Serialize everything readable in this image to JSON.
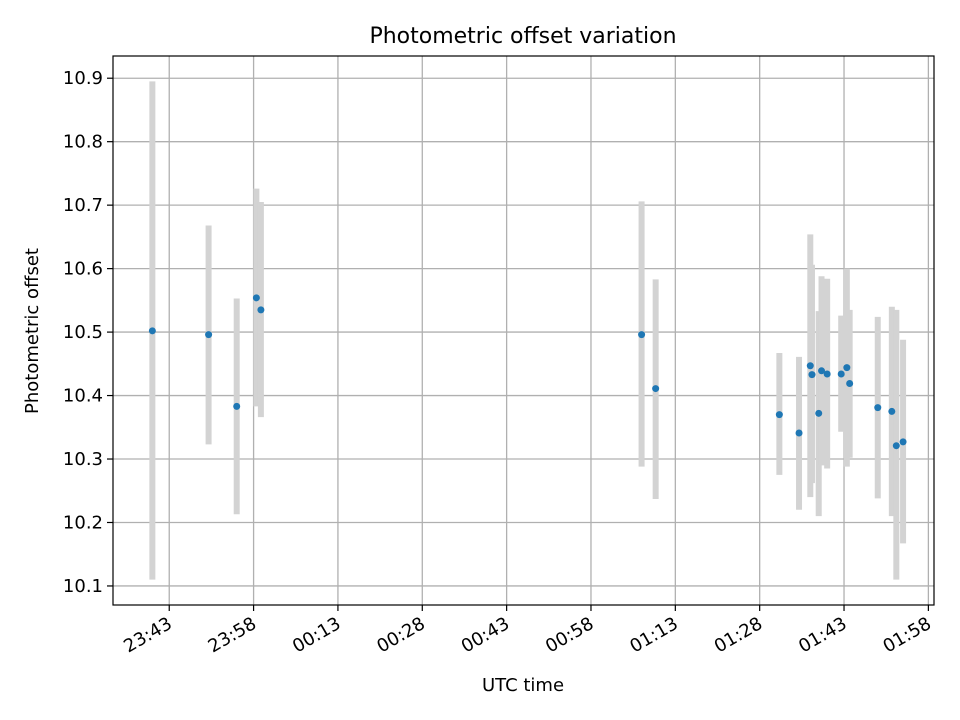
{
  "chart_data": {
    "type": "scatter",
    "title": "Photometric offset variation",
    "xlabel": "UTC time",
    "ylabel": "Photometric offset",
    "grid": true,
    "x_unit": "UTC clock time (HH:MM)",
    "xlim": [
      "23:33",
      "01:59"
    ],
    "ylim": [
      10.07,
      10.935
    ],
    "x_ticks": [
      "23:43",
      "23:58",
      "00:13",
      "00:28",
      "00:43",
      "00:58",
      "01:13",
      "01:28",
      "01:43",
      "01:58"
    ],
    "y_ticks": [
      10.1,
      10.2,
      10.3,
      10.4,
      10.5,
      10.6,
      10.7,
      10.8,
      10.9
    ],
    "y_tick_labels": [
      "10.1",
      "10.2",
      "10.3",
      "10.4",
      "10.5",
      "10.6",
      "10.7",
      "10.8",
      "10.9"
    ],
    "colors": {
      "marker": "#1f77b4",
      "errorbar": "#d3d3d3",
      "grid": "#b0b0b0"
    },
    "points": [
      {
        "x": "23:40",
        "y": 10.502,
        "ylow": 10.11,
        "yhigh": 10.895
      },
      {
        "x": "23:50",
        "y": 10.496,
        "ylow": 10.323,
        "yhigh": 10.668
      },
      {
        "x": "23:55",
        "y": 10.383,
        "ylow": 10.213,
        "yhigh": 10.553
      },
      {
        "x": "23:58.5",
        "y": 10.554,
        "ylow": 10.383,
        "yhigh": 10.726
      },
      {
        "x": "23:59.3",
        "y": 10.535,
        "ylow": 10.366,
        "yhigh": 10.705
      },
      {
        "x": "01:07",
        "y": 10.496,
        "ylow": 10.288,
        "yhigh": 10.706
      },
      {
        "x": "01:09.5",
        "y": 10.411,
        "ylow": 10.237,
        "yhigh": 10.583
      },
      {
        "x": "01:31.5",
        "y": 10.37,
        "ylow": 10.275,
        "yhigh": 10.467
      },
      {
        "x": "01:35",
        "y": 10.341,
        "ylow": 10.22,
        "yhigh": 10.461
      },
      {
        "x": "01:37",
        "y": 10.447,
        "ylow": 10.24,
        "yhigh": 10.654
      },
      {
        "x": "01:37.3",
        "y": 10.433,
        "ylow": 10.262,
        "yhigh": 10.606
      },
      {
        "x": "01:38.5",
        "y": 10.372,
        "ylow": 10.21,
        "yhigh": 10.533
      },
      {
        "x": "01:39",
        "y": 10.439,
        "ylow": 10.29,
        "yhigh": 10.588
      },
      {
        "x": "01:40",
        "y": 10.434,
        "ylow": 10.285,
        "yhigh": 10.584
      },
      {
        "x": "01:42.5",
        "y": 10.434,
        "ylow": 10.343,
        "yhigh": 10.526
      },
      {
        "x": "01:43.5",
        "y": 10.444,
        "ylow": 10.288,
        "yhigh": 10.6
      },
      {
        "x": "01:44",
        "y": 10.419,
        "ylow": 10.302,
        "yhigh": 10.535
      },
      {
        "x": "01:49",
        "y": 10.381,
        "ylow": 10.238,
        "yhigh": 10.524
      },
      {
        "x": "01:51.5",
        "y": 10.375,
        "ylow": 10.21,
        "yhigh": 10.54
      },
      {
        "x": "01:52.3",
        "y": 10.321,
        "ylow": 10.11,
        "yhigh": 10.535
      },
      {
        "x": "01:53.5",
        "y": 10.327,
        "ylow": 10.167,
        "yhigh": 10.488
      }
    ]
  }
}
